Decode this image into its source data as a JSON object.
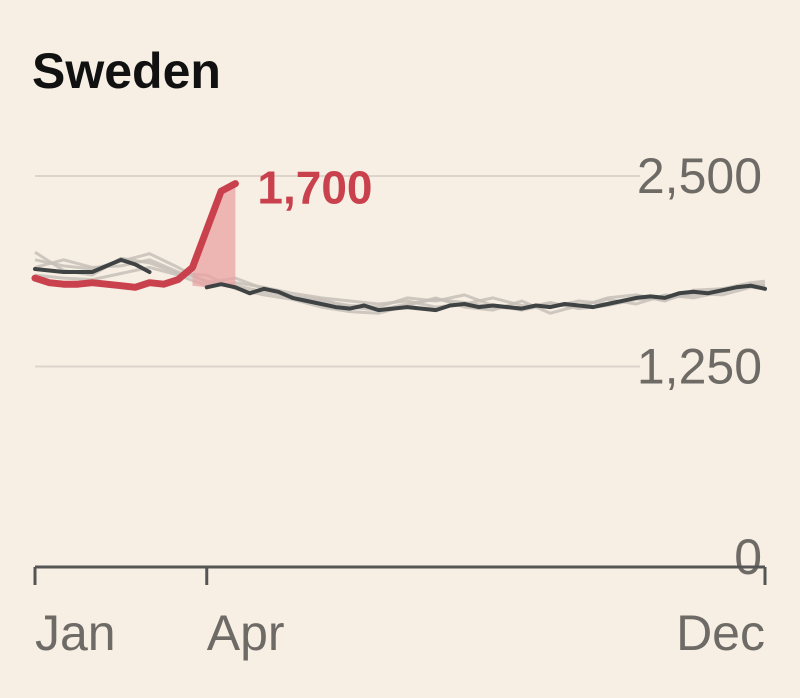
{
  "chart_data": {
    "type": "line",
    "title": "Sweden",
    "x_unit": "week",
    "xlim": [
      1,
      52
    ],
    "ylim": [
      0,
      2500
    ],
    "y_ticks": [
      {
        "value": 2500,
        "label": "2,500"
      },
      {
        "value": 1250,
        "label": "1,250"
      },
      {
        "value": 0,
        "label": "0"
      }
    ],
    "x_ticks": [
      {
        "value": 1,
        "label": "Jan"
      },
      {
        "value": 13,
        "label": "Apr"
      },
      {
        "value": 52,
        "label": "Dec"
      }
    ],
    "grid": true,
    "legend": "none",
    "annotation": {
      "label": "1,700",
      "week": 15,
      "value": 2450
    },
    "colors": {
      "current": "#c9414d",
      "average": "#3f4344",
      "past": "#c5c0b8",
      "excess_fill": "#e9a3a3",
      "grid": "#ddd5cb",
      "axis": "#555555",
      "tick_text": "#6e6a66"
    },
    "series": [
      {
        "role": "current",
        "x": [
          1,
          2,
          3,
          4,
          5,
          6,
          7,
          8,
          9,
          10,
          11,
          12,
          13,
          14,
          15
        ],
        "values": [
          1830,
          1800,
          1790,
          1790,
          1800,
          1790,
          1780,
          1770,
          1800,
          1790,
          1820,
          1900,
          2150,
          2400,
          2450
        ]
      },
      {
        "role": "average",
        "x": [
          1,
          2,
          3,
          4,
          5,
          6,
          7,
          8,
          9,
          10,
          11,
          12,
          13,
          14,
          15,
          16,
          17,
          18,
          19,
          20,
          21,
          22,
          23,
          24,
          25,
          26,
          27,
          28,
          29,
          30,
          31,
          32,
          33,
          34,
          35,
          36,
          37,
          38,
          39,
          40,
          41,
          42,
          43,
          44,
          45,
          46,
          47,
          48,
          49,
          50,
          51,
          52
        ],
        "values": [
          1890,
          1880,
          1870,
          1870,
          1870,
          1910,
          1950,
          1920,
          1870,
          null,
          null,
          null,
          1770,
          1790,
          1770,
          1730,
          1760,
          1740,
          1700,
          1680,
          1660,
          1640,
          1630,
          1650,
          1620,
          1630,
          1640,
          1630,
          1620,
          1650,
          1660,
          1640,
          1650,
          1640,
          1630,
          1650,
          1640,
          1660,
          1650,
          1640,
          1660,
          1680,
          1700,
          1710,
          1700,
          1730,
          1740,
          1730,
          1750,
          1770,
          1780,
          1760
        ]
      },
      {
        "role": "past",
        "x": [
          1,
          3,
          5,
          7,
          9,
          11,
          13,
          15,
          17,
          19,
          21,
          23,
          25,
          27,
          29,
          31,
          33,
          35,
          37,
          39,
          41,
          43,
          45,
          47,
          49,
          51,
          52
        ],
        "values": [
          1950,
          1910,
          1890,
          1940,
          1990,
          1900,
          1800,
          1830,
          1760,
          1700,
          1680,
          1650,
          1640,
          1700,
          1680,
          1720,
          1650,
          1620,
          1660,
          1640,
          1700,
          1720,
          1680,
          1750,
          1760,
          1800,
          1810
        ]
      },
      {
        "role": "past",
        "x": [
          1,
          3,
          5,
          7,
          9,
          11,
          13,
          15,
          17,
          19,
          21,
          23,
          25,
          27,
          29,
          31,
          33,
          35,
          37,
          39,
          41,
          43,
          45,
          47,
          49,
          51,
          52
        ],
        "values": [
          2000,
          1880,
          1850,
          1960,
          1930,
          1860,
          1850,
          1760,
          1720,
          1690,
          1640,
          1610,
          1600,
          1650,
          1700,
          1640,
          1620,
          1680,
          1600,
          1650,
          1690,
          1660,
          1720,
          1700,
          1740,
          1790,
          1780
        ]
      },
      {
        "role": "past",
        "x": [
          1,
          3,
          5,
          7,
          9,
          11,
          13,
          15,
          17,
          19,
          21,
          23,
          25,
          27,
          29,
          31,
          33,
          35,
          37,
          39,
          41,
          43,
          45,
          47,
          49,
          51,
          52
        ],
        "values": [
          1850,
          1830,
          1820,
          1860,
          1900,
          1850,
          1780,
          1800,
          1770,
          1730,
          1700,
          1680,
          1660,
          1680,
          1640,
          1660,
          1700,
          1650,
          1640,
          1680,
          1660,
          1700,
          1690,
          1730,
          1720,
          1770,
          1760
        ]
      },
      {
        "role": "past",
        "x": [
          1,
          3,
          5,
          7,
          9,
          11,
          13,
          15,
          17,
          19,
          21,
          23,
          25,
          27,
          29,
          31,
          33,
          35,
          37,
          39,
          41,
          43,
          45,
          47,
          49,
          51,
          52
        ],
        "values": [
          1900,
          1950,
          1900,
          1910,
          1950,
          1870,
          1810,
          1780,
          1740,
          1710,
          1690,
          1640,
          1620,
          1660,
          1690,
          1670,
          1640,
          1630,
          1670,
          1630,
          1650,
          1690,
          1700,
          1720,
          1760,
          1780,
          1790
        ]
      },
      {
        "role": "excess_area",
        "x": [
          12,
          13,
          14,
          15
        ],
        "upper": [
          1900,
          2150,
          2400,
          2450
        ],
        "lower": [
          1780,
          1770,
          1790,
          1770
        ]
      }
    ]
  }
}
